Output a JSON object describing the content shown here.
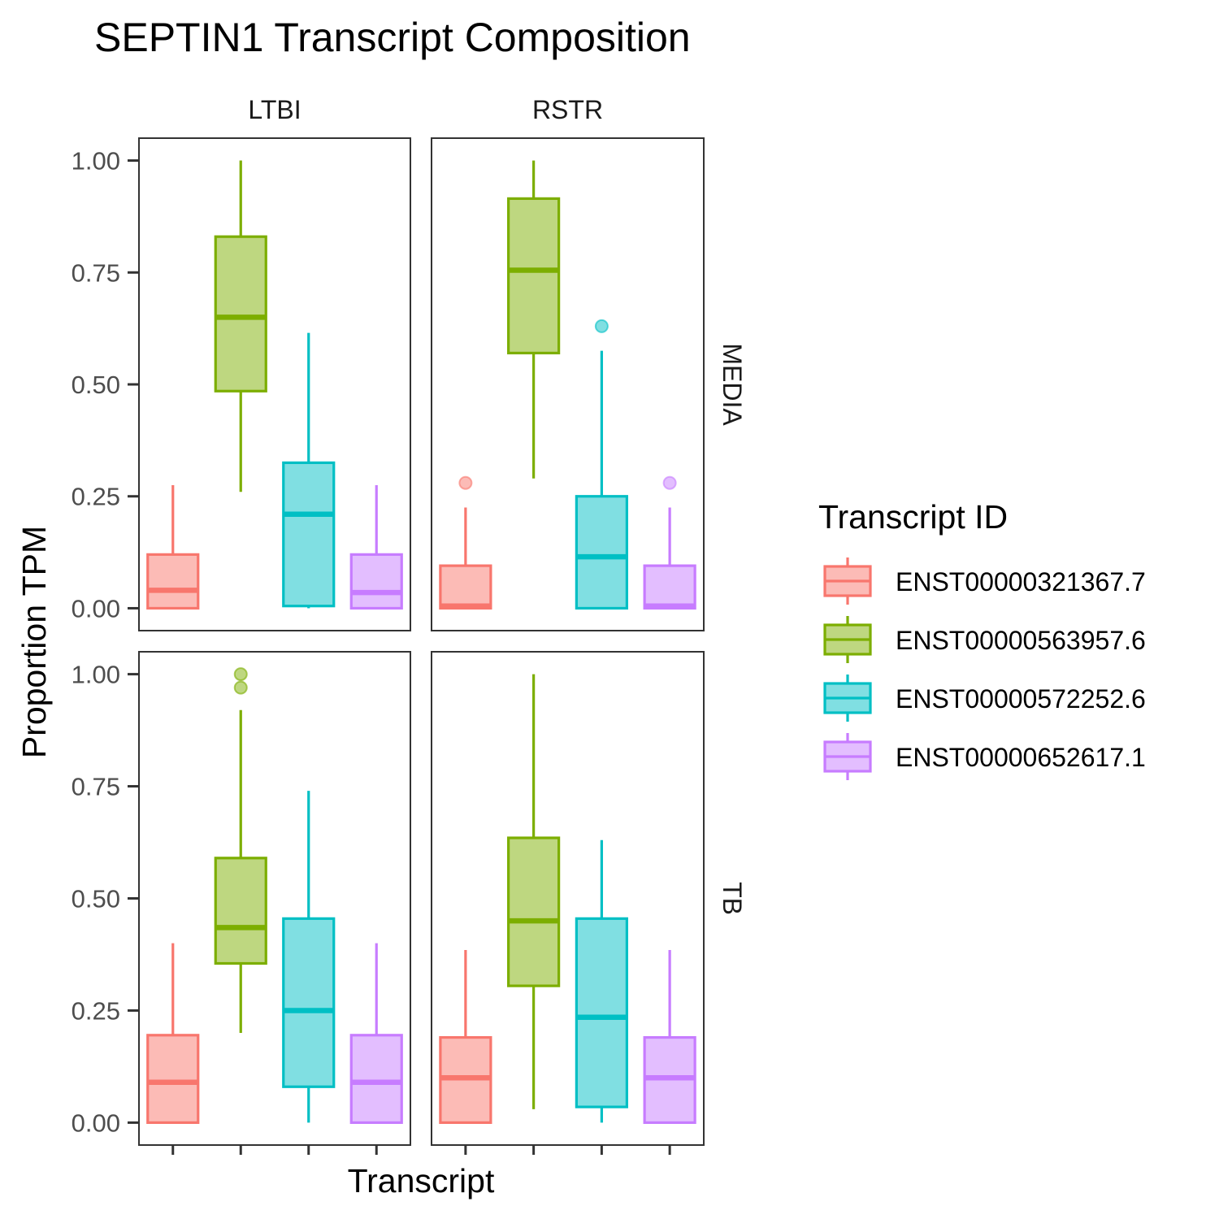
{
  "chart_data": {
    "type": "boxplot",
    "title": "SEPTIN1 Transcript Composition",
    "xlabel": "Transcript",
    "ylabel": "Proportion TPM",
    "ylim": [
      -0.05,
      1.05
    ],
    "yticks": [
      0,
      0.25,
      0.5,
      0.75,
      1
    ],
    "ytick_labels": [
      "0.00",
      "0.25",
      "0.50",
      "0.75",
      "1.00"
    ],
    "grid": false,
    "legend": {
      "title": "Transcript ID",
      "position": "right",
      "entries": [
        "ENST00000321367.7",
        "ENST00000563957.6",
        "ENST00000572252.6",
        "ENST00000652617.1"
      ]
    },
    "colors": {
      "ENST00000321367.7": "#F8766D",
      "ENST00000563957.6": "#7CAE00",
      "ENST00000572252.6": "#00BFC4",
      "ENST00000652617.1": "#C77CFF"
    },
    "facet_columns": [
      "LTBI",
      "RSTR"
    ],
    "facet_rows": [
      "MEDIA",
      "TB"
    ],
    "panels": [
      {
        "col": "LTBI",
        "row": "MEDIA",
        "boxes": [
          {
            "transcript": "ENST00000321367.7",
            "whisker_low": 0.0,
            "q1": 0.0,
            "median": 0.04,
            "q3": 0.12,
            "whisker_high": 0.275,
            "outliers": []
          },
          {
            "transcript": "ENST00000563957.6",
            "whisker_low": 0.26,
            "q1": 0.485,
            "median": 0.65,
            "q3": 0.83,
            "whisker_high": 1.0,
            "outliers": []
          },
          {
            "transcript": "ENST00000572252.6",
            "whisker_low": 0.0,
            "q1": 0.005,
            "median": 0.21,
            "q3": 0.325,
            "whisker_high": 0.615,
            "outliers": []
          },
          {
            "transcript": "ENST00000652617.1",
            "whisker_low": 0.0,
            "q1": 0.0,
            "median": 0.035,
            "q3": 0.12,
            "whisker_high": 0.275,
            "outliers": []
          }
        ]
      },
      {
        "col": "RSTR",
        "row": "MEDIA",
        "boxes": [
          {
            "transcript": "ENST00000321367.7",
            "whisker_low": 0.0,
            "q1": 0.0,
            "median": 0.005,
            "q3": 0.095,
            "whisker_high": 0.225,
            "outliers": [
              0.28
            ]
          },
          {
            "transcript": "ENST00000563957.6",
            "whisker_low": 0.29,
            "q1": 0.57,
            "median": 0.755,
            "q3": 0.915,
            "whisker_high": 1.0,
            "outliers": []
          },
          {
            "transcript": "ENST00000572252.6",
            "whisker_low": 0.0,
            "q1": 0.0,
            "median": 0.115,
            "q3": 0.25,
            "whisker_high": 0.575,
            "outliers": [
              0.63
            ]
          },
          {
            "transcript": "ENST00000652617.1",
            "whisker_low": 0.0,
            "q1": 0.0,
            "median": 0.005,
            "q3": 0.095,
            "whisker_high": 0.225,
            "outliers": [
              0.28
            ]
          }
        ]
      },
      {
        "col": "LTBI",
        "row": "TB",
        "boxes": [
          {
            "transcript": "ENST00000321367.7",
            "whisker_low": 0.0,
            "q1": 0.0,
            "median": 0.09,
            "q3": 0.195,
            "whisker_high": 0.4,
            "outliers": []
          },
          {
            "transcript": "ENST00000563957.6",
            "whisker_low": 0.2,
            "q1": 0.355,
            "median": 0.435,
            "q3": 0.59,
            "whisker_high": 0.92,
            "outliers": [
              0.97,
              1.0
            ]
          },
          {
            "transcript": "ENST00000572252.6",
            "whisker_low": 0.0,
            "q1": 0.08,
            "median": 0.25,
            "q3": 0.455,
            "whisker_high": 0.74,
            "outliers": []
          },
          {
            "transcript": "ENST00000652617.1",
            "whisker_low": 0.0,
            "q1": 0.0,
            "median": 0.09,
            "q3": 0.195,
            "whisker_high": 0.4,
            "outliers": []
          }
        ]
      },
      {
        "col": "RSTR",
        "row": "TB",
        "boxes": [
          {
            "transcript": "ENST00000321367.7",
            "whisker_low": 0.0,
            "q1": 0.0,
            "median": 0.1,
            "q3": 0.19,
            "whisker_high": 0.385,
            "outliers": []
          },
          {
            "transcript": "ENST00000563957.6",
            "whisker_low": 0.03,
            "q1": 0.305,
            "median": 0.45,
            "q3": 0.635,
            "whisker_high": 1.0,
            "outliers": []
          },
          {
            "transcript": "ENST00000572252.6",
            "whisker_low": 0.0,
            "q1": 0.035,
            "median": 0.235,
            "q3": 0.455,
            "whisker_high": 0.63,
            "outliers": []
          },
          {
            "transcript": "ENST00000652617.1",
            "whisker_low": 0.0,
            "q1": 0.0,
            "median": 0.1,
            "q3": 0.19,
            "whisker_high": 0.385,
            "outliers": []
          }
        ]
      }
    ]
  }
}
